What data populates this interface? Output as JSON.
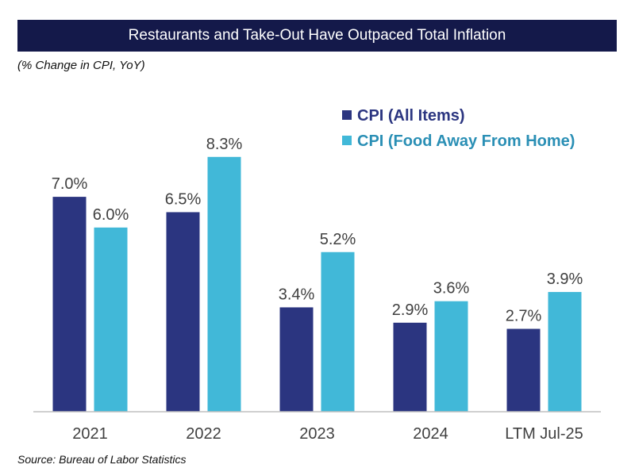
{
  "title": "Restaurants and Take-Out Have Outpaced Total Inflation",
  "subtitle": "(% Change in CPI, YoY)",
  "source": "Source: Bureau of Labor Statistics",
  "colors": {
    "title_bg": "#14194a",
    "cpi_all": "#2b3580",
    "cpi_food": "#41b8d8",
    "legend_text_all": "#2b3580",
    "legend_text_food": "#2a8fb5"
  },
  "chart_data": {
    "type": "bar",
    "title": "Restaurants and Take-Out Have Outpaced Total Inflation",
    "subtitle": "(% Change in CPI, YoY)",
    "categories": [
      "2021",
      "2022",
      "2023",
      "2024",
      "LTM Jul-25"
    ],
    "series": [
      {
        "name": "CPI (All Items)",
        "values": [
          7.0,
          6.5,
          3.4,
          2.9,
          2.7
        ],
        "labels": [
          "7.0%",
          "6.5%",
          "3.4%",
          "2.9%",
          "2.7%"
        ]
      },
      {
        "name": "CPI (Food Away From Home)",
        "values": [
          6.0,
          8.3,
          5.2,
          3.6,
          3.9
        ],
        "labels": [
          "6.0%",
          "8.3%",
          "5.2%",
          "3.6%",
          "3.9%"
        ]
      }
    ],
    "ylim": [
      0,
      10
    ],
    "grid": false,
    "legend_position": "top-right"
  }
}
